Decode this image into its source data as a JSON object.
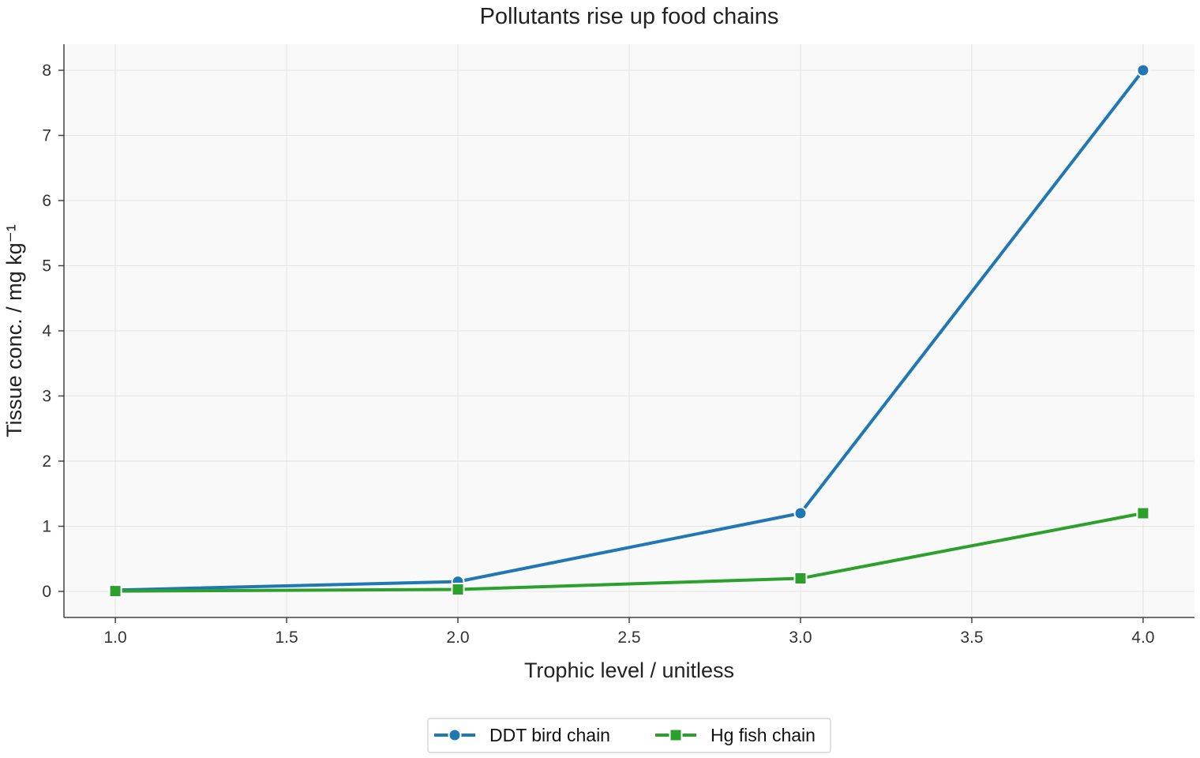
{
  "chart_data": {
    "type": "line",
    "title": "Pollutants rise up food chains",
    "xlabel": "Trophic level / unitless",
    "ylabel": "Tissue conc. / mg kg⁻¹",
    "x": [
      1.0,
      2.0,
      3.0,
      4.0
    ],
    "xlim": [
      0.85,
      4.15
    ],
    "ylim": [
      -0.4,
      8.4
    ],
    "xticks": [
      "1.0",
      "1.5",
      "2.0",
      "2.5",
      "3.0",
      "3.5",
      "4.0"
    ],
    "yticks": [
      "0",
      "1",
      "2",
      "3",
      "4",
      "5",
      "6",
      "7",
      "8"
    ],
    "grid": true,
    "legend_position": "bottom-center",
    "series": [
      {
        "name": "DDT bird chain",
        "values": [
          0.02,
          0.15,
          1.2,
          8.0
        ],
        "color": "#1f77b4",
        "marker": "circle"
      },
      {
        "name": "Hg fish chain",
        "values": [
          0.005,
          0.03,
          0.2,
          1.2
        ],
        "color": "#2ca02c",
        "marker": "square"
      }
    ]
  }
}
